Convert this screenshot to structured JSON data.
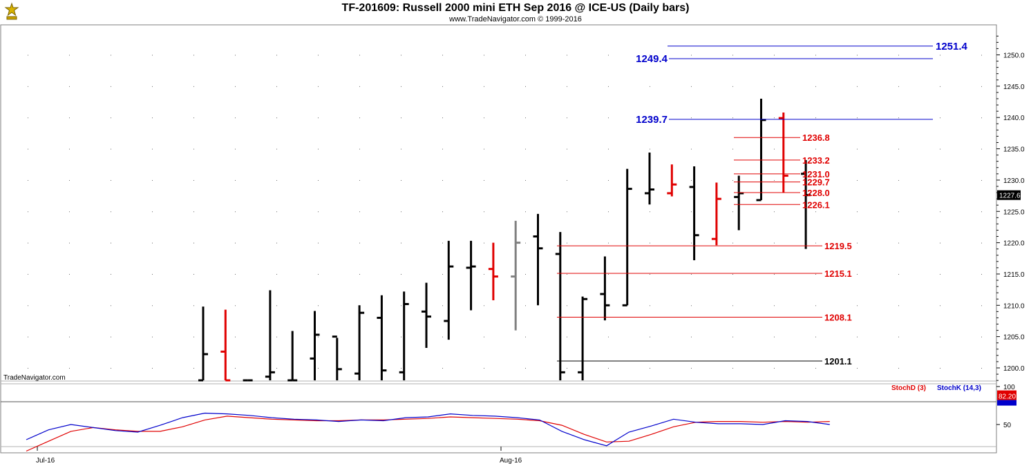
{
  "header": {
    "title": "TF-201609:  Russell 2000 mini ETH Sep 2016 @ ICE-US  (Daily bars)",
    "subtitle": "www.TradeNavigator.com © 1999-2016",
    "watermark": "TradeNavigator.com"
  },
  "chart_data": [
    {
      "type": "ohlc",
      "price_axis": {
        "min": 1197.5,
        "max": 1254.5,
        "ticks": [
          "1200.0",
          "1205.0",
          "1210.0",
          "1215.0",
          "1220.0",
          "1225.0",
          "1230.0",
          "1235.0",
          "1240.0",
          "1245.0",
          "1250.0"
        ]
      },
      "last_price_label": "1227.6",
      "bars": [
        {
          "o": 1197.8,
          "h": 1209.8,
          "l": 1197.5,
          "c": 1202.2,
          "color": "#000000"
        },
        {
          "o": 1202.6,
          "h": 1209.3,
          "l": 1197.5,
          "c": 1198.0,
          "color": "#e00000"
        },
        {
          "o": 1198.0,
          "h": 1198.0,
          "l": 1197.5,
          "c": 1198.0,
          "color": "#000000"
        },
        {
          "o": 1198.6,
          "h": 1212.4,
          "l": 1197.5,
          "c": 1199.3,
          "color": "#000000"
        },
        {
          "o": 1197.8,
          "h": 1205.9,
          "l": 1197.5,
          "c": 1197.8,
          "color": "#000000"
        },
        {
          "o": 1201.5,
          "h": 1209.1,
          "l": 1197.5,
          "c": 1205.3,
          "color": "#000000"
        },
        {
          "o": 1205.0,
          "h": 1204.8,
          "l": 1197.5,
          "c": 1199.8,
          "color": "#000000"
        },
        {
          "o": 1199.1,
          "h": 1210.0,
          "l": 1197.5,
          "c": 1208.8,
          "color": "#000000"
        },
        {
          "o": 1208.0,
          "h": 1211.6,
          "l": 1197.5,
          "c": 1199.6,
          "color": "#000000"
        },
        {
          "o": 1199.3,
          "h": 1212.2,
          "l": 1197.5,
          "c": 1210.2,
          "color": "#000000"
        },
        {
          "o": 1209.0,
          "h": 1213.6,
          "l": 1203.2,
          "c": 1208.2,
          "color": "#000000"
        },
        {
          "o": 1207.5,
          "h": 1220.3,
          "l": 1204.5,
          "c": 1216.2,
          "color": "#000000"
        },
        {
          "o": 1216.0,
          "h": 1220.3,
          "l": 1209.2,
          "c": 1216.2,
          "color": "#000000"
        },
        {
          "o": 1215.8,
          "h": 1220.0,
          "l": 1210.8,
          "c": 1214.6,
          "color": "#e00000"
        },
        {
          "o": 1214.6,
          "h": 1223.5,
          "l": 1206.0,
          "c": 1220.0,
          "color": "#808080"
        },
        {
          "o": 1221.0,
          "h": 1224.6,
          "l": 1210.0,
          "c": 1219.1,
          "color": "#000000"
        },
        {
          "o": 1218.2,
          "h": 1221.7,
          "l": 1197.5,
          "c": 1199.3,
          "color": "#000000"
        },
        {
          "o": 1199.3,
          "h": 1211.4,
          "l": 1197.5,
          "c": 1211.0,
          "color": "#000000"
        },
        {
          "o": 1211.8,
          "h": 1217.8,
          "l": 1207.6,
          "c": 1210.0,
          "color": "#000000"
        },
        {
          "o": 1210.0,
          "h": 1231.8,
          "l": 1210.0,
          "c": 1228.6,
          "color": "#000000"
        },
        {
          "o": 1227.9,
          "h": 1234.4,
          "l": 1226.1,
          "c": 1228.5,
          "color": "#000000"
        },
        {
          "o": 1227.9,
          "h": 1232.5,
          "l": 1227.4,
          "c": 1229.3,
          "color": "#e00000"
        },
        {
          "o": 1228.9,
          "h": 1232.2,
          "l": 1217.2,
          "c": 1221.2,
          "color": "#000000"
        },
        {
          "o": 1220.6,
          "h": 1229.6,
          "l": 1219.6,
          "c": 1227.0,
          "color": "#e00000"
        },
        {
          "o": 1227.3,
          "h": 1230.7,
          "l": 1222.0,
          "c": 1227.9,
          "color": "#000000"
        },
        {
          "o": 1226.8,
          "h": 1243.0,
          "l": 1226.8,
          "c": 1239.6,
          "color": "#000000"
        },
        {
          "o": 1239.9,
          "h": 1240.8,
          "l": 1228.0,
          "c": 1230.7,
          "color": "#e00000"
        },
        {
          "o": 1231.0,
          "h": 1233.2,
          "l": 1219.0,
          "c": 1227.6,
          "color": "#000000"
        }
      ],
      "levels": [
        {
          "value": 1251.4,
          "label": "1251.4",
          "color": "#0000cc",
          "x1": 966,
          "x2": 1350,
          "label_side": "right",
          "label_x": 1354
        },
        {
          "value": 1249.4,
          "label": "1249.4",
          "color": "#0000cc",
          "x1": 968,
          "x2": 1350,
          "label_side": "left",
          "label_x": 966
        },
        {
          "value": 1239.7,
          "label": "1239.7",
          "color": "#0000cc",
          "x1": 968,
          "x2": 1350,
          "label_side": "left",
          "label_x": 966
        },
        {
          "value": 1236.8,
          "label": "1236.8",
          "color": "#e00000",
          "x1": 1062,
          "x2": 1158,
          "label_side": "right",
          "label_x": 1161
        },
        {
          "value": 1233.2,
          "label": "1233.2",
          "color": "#e00000",
          "x1": 1062,
          "x2": 1158,
          "label_side": "right",
          "label_x": 1161
        },
        {
          "value": 1231.0,
          "label": "1231.0",
          "color": "#e00000",
          "x1": 1062,
          "x2": 1158,
          "label_side": "right",
          "label_x": 1161
        },
        {
          "value": 1229.7,
          "label": "1229.7",
          "color": "#e00000",
          "x1": 1062,
          "x2": 1158,
          "label_side": "right",
          "label_x": 1161
        },
        {
          "value": 1228.0,
          "label": "1228.0",
          "color": "#e00000",
          "x1": 1062,
          "x2": 1158,
          "label_side": "right",
          "label_x": 1161
        },
        {
          "value": 1226.1,
          "label": "1226.1",
          "color": "#e00000",
          "x1": 1062,
          "x2": 1158,
          "label_side": "right",
          "label_x": 1161
        },
        {
          "value": 1219.5,
          "label": "1219.5",
          "color": "#e00000",
          "x1": 806,
          "x2": 1190,
          "label_side": "right",
          "label_x": 1193
        },
        {
          "value": 1215.1,
          "label": "1215.1",
          "color": "#e00000",
          "x1": 806,
          "x2": 1190,
          "label_side": "right",
          "label_x": 1193
        },
        {
          "value": 1208.1,
          "label": "1208.1",
          "color": "#e00000",
          "x1": 806,
          "x2": 1190,
          "label_side": "right",
          "label_x": 1193
        },
        {
          "value": 1201.1,
          "label": "1201.1",
          "color": "#000000",
          "x1": 806,
          "x2": 1190,
          "label_side": "right",
          "label_x": 1193
        }
      ]
    },
    {
      "type": "line",
      "indicator": "Stochastic",
      "y_axis": {
        "min": 20,
        "max": 100,
        "ticks": [
          "100",
          "50"
        ]
      },
      "reference_level": 80,
      "current_value_label": "82.20",
      "series": [
        {
          "name": "StochD (3)",
          "color": "#e00000",
          "values": [
            15,
            28,
            41,
            46,
            43,
            41,
            41,
            47,
            56,
            61,
            59,
            57,
            56,
            55,
            55,
            56,
            56,
            57,
            58,
            60,
            59,
            58,
            57,
            55,
            49,
            37,
            27,
            28,
            37,
            47,
            53,
            54,
            54,
            53,
            54,
            53,
            54
          ]
        },
        {
          "name": "StochK (14,3)",
          "color": "#0000cc",
          "values": [
            30,
            43,
            50,
            46,
            42,
            40,
            49,
            59,
            65,
            64,
            62,
            59,
            57,
            56,
            54,
            56,
            55,
            59,
            60,
            64,
            62,
            61,
            59,
            56,
            41,
            30,
            22,
            40,
            48,
            57,
            53,
            51,
            51,
            50,
            55,
            54,
            50
          ]
        }
      ]
    }
  ],
  "time_axis": {
    "labels": [
      "Jul-16",
      "Aug-16"
    ]
  }
}
